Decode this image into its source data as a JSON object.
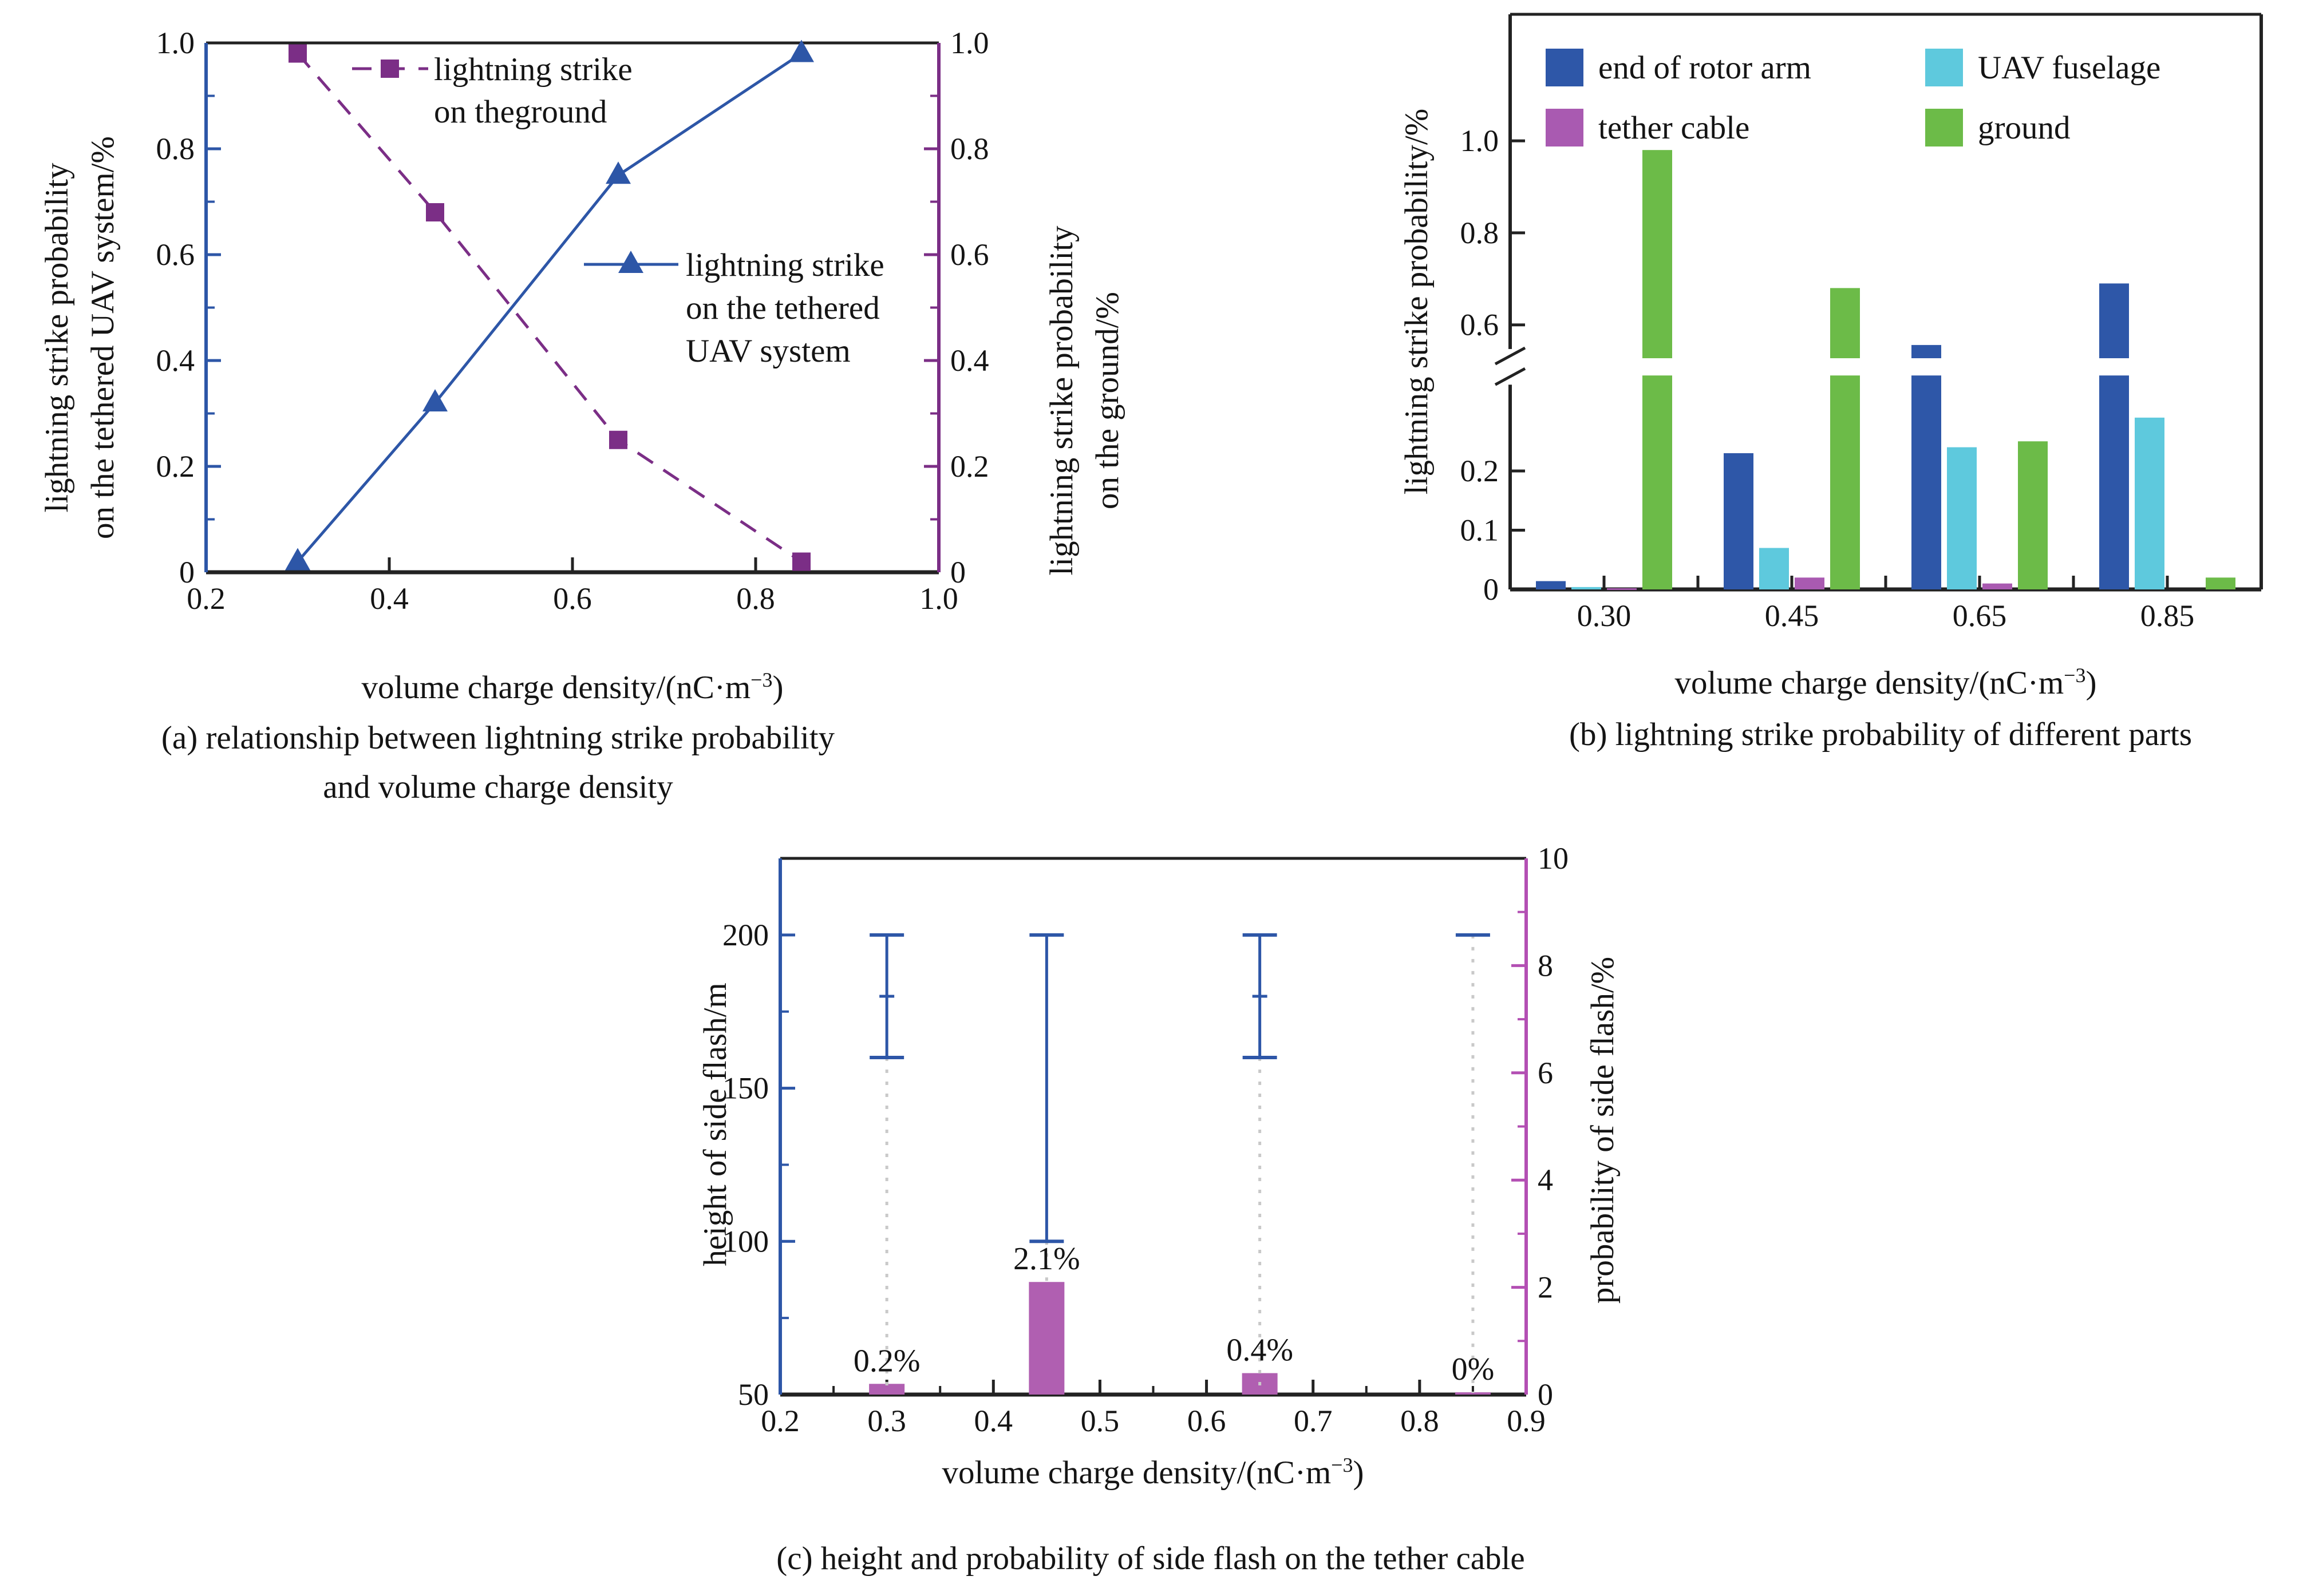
{
  "page": {
    "background": "#ffffff"
  },
  "colors": {
    "axis_black": "#222222",
    "axis_blue": "#2d56a7",
    "axis_purple_a": "#7b2e86",
    "axis_purple_c": "#b34fb3",
    "dotted_gray": "#c9c9c9",
    "text": "#141414"
  },
  "chart_data": [
    {
      "id": "a",
      "type": "line",
      "caption": {
        "line1": "(a) relationship between lightning strike probability",
        "line2": "and volume charge density"
      },
      "xlabel": {
        "pre": "volume charge density/(nC·m",
        "sup": "−3",
        "post": ")"
      },
      "ylabel_left": {
        "line1": "lightning strike probability",
        "line2": "on the tethered UAV system/%"
      },
      "ylabel_right": {
        "line1": "lightning strike probability",
        "line2": "on the ground/%"
      },
      "xlim": [
        0.2,
        1.0
      ],
      "ylim": [
        0,
        1.0
      ],
      "xticks": {
        "values": [
          0.2,
          0.4,
          0.6,
          0.8,
          1.0
        ],
        "labels": [
          "0.2",
          "0.4",
          "0.6",
          "0.8",
          "1.0"
        ],
        "minor": []
      },
      "yticks": {
        "values": [
          0,
          0.2,
          0.4,
          0.6,
          0.8,
          1.0
        ],
        "labels": [
          "0",
          "0.2",
          "0.4",
          "0.6",
          "0.8",
          "1.0"
        ],
        "minor": [
          0.1,
          0.3,
          0.5,
          0.7,
          0.9
        ]
      },
      "series": [
        {
          "key": "ground",
          "label_lines": [
            "lightning strike",
            "on theground"
          ],
          "color": "#7b2e86",
          "line": "dashed",
          "marker": "square",
          "x": [
            0.3,
            0.45,
            0.65,
            0.85
          ],
          "y": [
            0.98,
            0.68,
            0.25,
            0.02
          ]
        },
        {
          "key": "tethered-uav-system",
          "label_lines": [
            "lightning strike",
            "on the tethered",
            "UAV system"
          ],
          "color": "#2d56a7",
          "line": "solid",
          "marker": "triangle",
          "x": [
            0.3,
            0.45,
            0.65,
            0.85
          ],
          "y": [
            0.02,
            0.32,
            0.75,
            0.98
          ]
        }
      ]
    },
    {
      "id": "b",
      "type": "bar",
      "caption": {
        "line1": "(b) lightning strike probability of different parts"
      },
      "xlabel": {
        "pre": "volume charge density/(nC·m",
        "sup": "−3",
        "post": ")"
      },
      "ylabel": "lightning strike probability/%",
      "categories": [
        "0.30",
        "0.45",
        "0.65",
        "0.85"
      ],
      "yticks_lower": {
        "values": [
          0,
          0.1,
          0.2
        ],
        "labels": [
          "0",
          "0.1",
          "0.2"
        ]
      },
      "yticks_upper": {
        "values": [
          0.6,
          0.8,
          1.0
        ],
        "labels": [
          "0.6",
          "0.8",
          "1.0"
        ]
      },
      "axis_break": {
        "collapsed_from": 0.33,
        "collapsed_to": 0.45
      },
      "series": [
        {
          "name": "end of rotor arm",
          "color": "#2e57a8",
          "values": [
            0.014,
            0.23,
            0.5,
            0.69
          ]
        },
        {
          "name": "UAV fuselage",
          "color": "#5ec9dd",
          "values": [
            0.004,
            0.07,
            0.24,
            0.29
          ]
        },
        {
          "name": "tether cable",
          "color": "#a95ab1",
          "values": [
            0.002,
            0.02,
            0.01,
            0.0
          ]
        },
        {
          "name": "ground",
          "color": "#6cbb48",
          "values": [
            0.98,
            0.68,
            0.25,
            0.02
          ]
        }
      ]
    },
    {
      "id": "c",
      "type": "bar-errorbar",
      "caption": {
        "line1": "(c) height and probability of side flash on the tether cable"
      },
      "xlabel": {
        "pre": "volume charge density/(nC·m",
        "sup": "−3",
        "post": ")"
      },
      "ylabel_left": "height of side flash/m",
      "ylabel_right": "probability of side flash/%",
      "xlim": [
        0.2,
        0.9
      ],
      "ylim_left": [
        50,
        225
      ],
      "ylim_right": [
        0,
        10
      ],
      "xticks": {
        "values": [
          0.2,
          0.3,
          0.4,
          0.5,
          0.6,
          0.7,
          0.8,
          0.9
        ],
        "labels": [
          "0.2",
          "0.3",
          "0.4",
          "0.5",
          "0.6",
          "0.7",
          "0.8",
          "0.9"
        ],
        "minor": [
          0.25,
          0.35,
          0.45,
          0.55,
          0.65,
          0.75,
          0.85
        ]
      },
      "yticks_left": {
        "values": [
          50,
          100,
          150,
          200
        ],
        "labels": [
          "50",
          "100",
          "150",
          "200"
        ],
        "minor": [
          75,
          125,
          175
        ]
      },
      "yticks_right": {
        "values": [
          0,
          2,
          4,
          6,
          8,
          10
        ],
        "labels": [
          "0",
          "2",
          "4",
          "6",
          "8",
          "10"
        ],
        "minor": [
          1,
          3,
          5,
          7,
          9
        ]
      },
      "bars": {
        "color": "#b05fb1",
        "x": [
          0.3,
          0.45,
          0.65,
          0.85
        ],
        "percent": [
          0.2,
          2.1,
          0.4,
          0
        ],
        "labels": [
          "0.2%",
          "2.1%",
          "0.4%",
          "0%"
        ]
      },
      "error_bars": {
        "color": "#2d56a7",
        "points": [
          {
            "x": 0.3,
            "low": 160,
            "high": 200,
            "mid": 180,
            "dotted_to": "axis"
          },
          {
            "x": 0.45,
            "low": 100,
            "high": 200,
            "dotted_to": "bar"
          },
          {
            "x": 0.65,
            "low": 160,
            "high": 200,
            "mid": 180,
            "dotted_to": "axis"
          },
          {
            "x": 0.85,
            "low": 200,
            "high": 200,
            "dotted_to": "axis"
          }
        ]
      }
    }
  ]
}
